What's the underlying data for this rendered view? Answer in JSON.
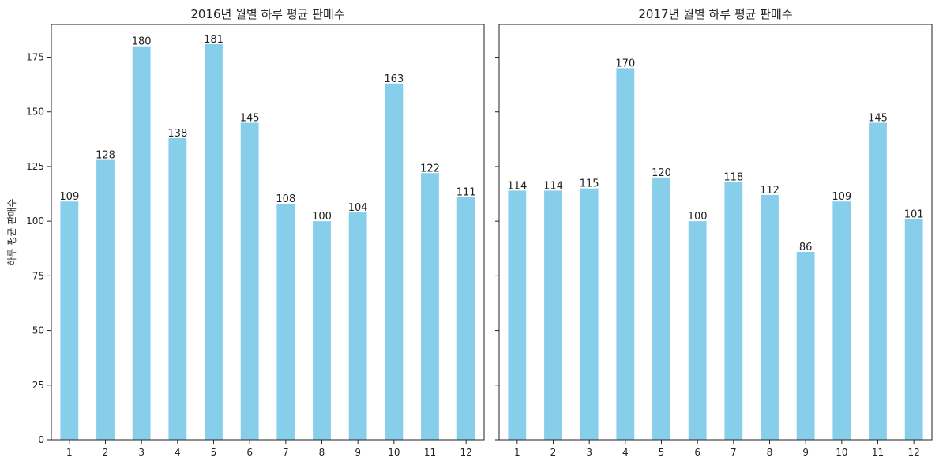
{
  "chart_data": [
    {
      "type": "bar",
      "title": "2016년 월별 하루 평균 판매수",
      "xlabel": "",
      "ylabel": "하루 평균 판매수",
      "categories": [
        "1",
        "2",
        "3",
        "4",
        "5",
        "6",
        "7",
        "8",
        "9",
        "10",
        "11",
        "12"
      ],
      "values": [
        109,
        128,
        180,
        138,
        181,
        145,
        108,
        100,
        104,
        163,
        122,
        111
      ],
      "data_labels": [
        "109",
        "128",
        "180",
        "138",
        "181",
        "145",
        "108",
        "100",
        "104",
        "163",
        "122",
        "111"
      ],
      "ylim": [
        0,
        190
      ],
      "yticks": [
        0,
        25,
        50,
        75,
        100,
        125,
        150,
        175
      ],
      "bar_color": "#87CEEB",
      "grid": false
    },
    {
      "type": "bar",
      "title": "2017년 월별 하루 평균 판매수",
      "xlabel": "",
      "ylabel": "",
      "categories": [
        "1",
        "2",
        "3",
        "4",
        "5",
        "6",
        "7",
        "8",
        "9",
        "10",
        "11",
        "12"
      ],
      "values": [
        114,
        114,
        115,
        170,
        120,
        100,
        118,
        112,
        86,
        109,
        145,
        101
      ],
      "data_labels": [
        "114",
        "114",
        "115",
        "170",
        "120",
        "100",
        "118",
        "112",
        "86",
        "109",
        "145",
        "101"
      ],
      "ylim": [
        0,
        190
      ],
      "yticks": [
        0,
        25,
        50,
        75,
        100,
        125,
        150,
        175
      ],
      "bar_color": "#87CEEB",
      "grid": false
    }
  ]
}
